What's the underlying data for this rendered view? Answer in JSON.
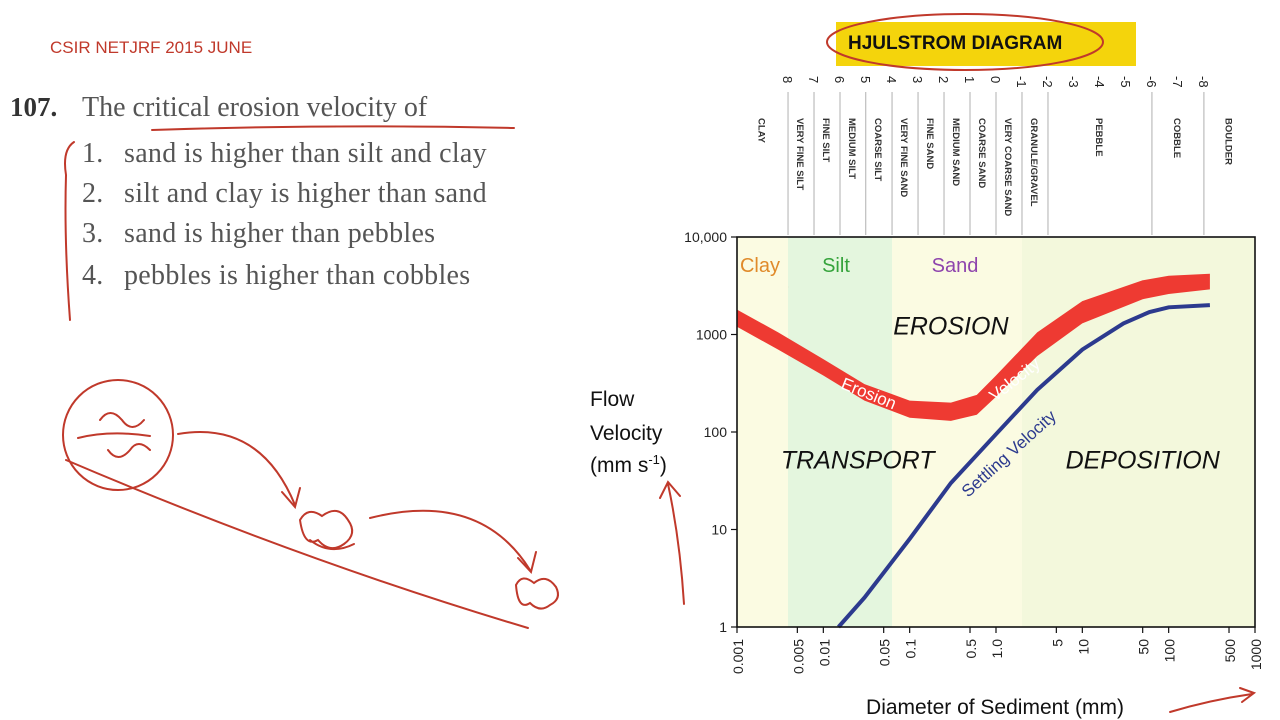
{
  "exam": {
    "title": "CSIR NETJRF 2015 JUNE"
  },
  "question": {
    "number": "107",
    "period": ".",
    "text": "The critical erosion velocity of",
    "options": [
      {
        "num": "1.",
        "text": "sand is higher than silt and clay"
      },
      {
        "num": "2.",
        "text": "silt and clay is higher than sand"
      },
      {
        "num": "3.",
        "text": "sand is higher than pebbles"
      },
      {
        "num": "4.",
        "text": "pebbles is higher than cobbles"
      }
    ]
  },
  "diagram_title": "HJULSTROM DIAGRAM",
  "annotation_color": "#c0392b",
  "chart_data": {
    "type": "line",
    "title": "HJULSTROM DIAGRAM",
    "xlabel": "Diameter of Sediment (mm)",
    "ylabel_lines": [
      "Flow",
      "Velocity",
      "(mm s",
      "-1",
      ")"
    ],
    "x_scale": "log",
    "y_scale": "log",
    "xlim": [
      0.001,
      1000
    ],
    "ylim": [
      1,
      10000
    ],
    "x_ticks": [
      {
        "v": 0.001,
        "label": "0.001"
      },
      {
        "v": 0.005,
        "label": "0.005"
      },
      {
        "v": 0.01,
        "label": "0.01"
      },
      {
        "v": 0.05,
        "label": "0.05"
      },
      {
        "v": 0.1,
        "label": "0.1"
      },
      {
        "v": 0.5,
        "label": "0.5"
      },
      {
        "v": 1,
        "label": "1.0"
      },
      {
        "v": 5,
        "label": "5"
      },
      {
        "v": 10,
        "label": "10"
      },
      {
        "v": 50,
        "label": "50"
      },
      {
        "v": 100,
        "label": "100"
      },
      {
        "v": 500,
        "label": "500"
      },
      {
        "v": 1000,
        "label": "1000"
      }
    ],
    "y_ticks": [
      {
        "v": 1,
        "label": "1"
      },
      {
        "v": 10,
        "label": "10"
      },
      {
        "v": 100,
        "label": "100"
      },
      {
        "v": 1000,
        "label": "1000"
      },
      {
        "v": 10000,
        "label": "10,000"
      }
    ],
    "phi_scale": [
      {
        "v": 0.0039,
        "label": "8"
      },
      {
        "v": 0.0078,
        "label": "7"
      },
      {
        "v": 0.0156,
        "label": "6"
      },
      {
        "v": 0.031,
        "label": "5"
      },
      {
        "v": 0.0625,
        "label": "4"
      },
      {
        "v": 0.125,
        "label": "3"
      },
      {
        "v": 0.25,
        "label": "2"
      },
      {
        "v": 0.5,
        "label": "1"
      },
      {
        "v": 1,
        "label": "0"
      },
      {
        "v": 2,
        "label": "-1"
      },
      {
        "v": 4,
        "label": "-2"
      },
      {
        "v": 8,
        "label": "-3"
      },
      {
        "v": 16,
        "label": "-4"
      },
      {
        "v": 32,
        "label": "-5"
      },
      {
        "v": 64,
        "label": "-6"
      },
      {
        "v": 128,
        "label": "-7"
      },
      {
        "v": 256,
        "label": "-8"
      }
    ],
    "size_classes": [
      {
        "label": "CLAY",
        "from": 0.001,
        "to": 0.0039
      },
      {
        "label": "VERY FINE SILT",
        "from": 0.0039,
        "to": 0.0078
      },
      {
        "label": "FINE SILT",
        "from": 0.0078,
        "to": 0.0156
      },
      {
        "label": "MEDIUM SILT",
        "from": 0.0156,
        "to": 0.031
      },
      {
        "label": "COARSE SILT",
        "from": 0.031,
        "to": 0.0625
      },
      {
        "label": "VERY FINE SAND",
        "from": 0.0625,
        "to": 0.125
      },
      {
        "label": "FINE SAND",
        "from": 0.125,
        "to": 0.25
      },
      {
        "label": "MEDIUM SAND",
        "from": 0.25,
        "to": 0.5
      },
      {
        "label": "COARSE SAND",
        "from": 0.5,
        "to": 1
      },
      {
        "label": "VERY COARSE SAND",
        "from": 1,
        "to": 2
      },
      {
        "label": "GRANULE/GRAVEL",
        "from": 2,
        "to": 4
      },
      {
        "label": "PEBBLE",
        "from": 4,
        "to": 64
      },
      {
        "label": "COBBLE",
        "from": 64,
        "to": 256
      },
      {
        "label": "BOULDER",
        "from": 256,
        "to": 1000
      }
    ],
    "regions": [
      {
        "label": "Clay",
        "from": 0.001,
        "to": 0.0039,
        "color": "#fbfbe2",
        "label_color": "#e08a2a"
      },
      {
        "label": "Silt",
        "from": 0.0039,
        "to": 0.0625,
        "color": "#e4f6de",
        "label_color": "#35a33b"
      },
      {
        "label": "Sand",
        "from": 0.0625,
        "to": 2,
        "color": "#fbfbe2",
        "label_color": "#8e44ad"
      },
      {
        "label": "",
        "from": 2,
        "to": 1000,
        "color": "#f3f8dc",
        "label_color": ""
      }
    ],
    "zone_labels": [
      {
        "label": "EROSION",
        "x": 0.3,
        "y": 1000
      },
      {
        "label": "TRANSPORT",
        "x": 0.025,
        "y": 42
      },
      {
        "label": "DEPOSITION",
        "x": 50,
        "y": 42
      }
    ],
    "series": [
      {
        "name": "Erosion Velocity",
        "color": "#ee3a32",
        "x": [
          0.001,
          0.003,
          0.01,
          0.03,
          0.1,
          0.3,
          0.6,
          1,
          3,
          10,
          50,
          100,
          300
        ],
        "y_low": [
          1200,
          700,
          380,
          210,
          140,
          130,
          150,
          230,
          600,
          1300,
          2300,
          2600,
          2900
        ],
        "y_high": [
          1800,
          1050,
          560,
          310,
          210,
          200,
          240,
          380,
          1050,
          2200,
          3600,
          4000,
          4200
        ]
      },
      {
        "name": "Settling Velocity",
        "color": "#2c3a8e",
        "x": [
          0.015,
          0.03,
          0.1,
          0.3,
          1,
          3,
          10,
          30,
          60,
          100,
          300
        ],
        "y": [
          1,
          2,
          8,
          30,
          95,
          270,
          700,
          1300,
          1700,
          1900,
          2000
        ]
      }
    ]
  }
}
